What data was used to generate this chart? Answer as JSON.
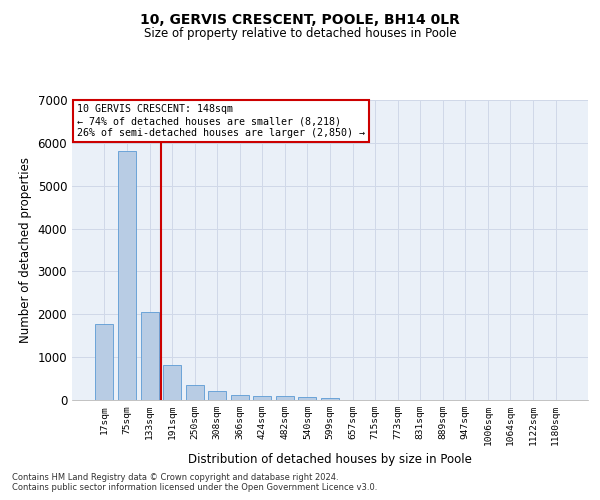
{
  "title1": "10, GERVIS CRESCENT, POOLE, BH14 0LR",
  "title2": "Size of property relative to detached houses in Poole",
  "xlabel": "Distribution of detached houses by size in Poole",
  "ylabel": "Number of detached properties",
  "property_label": "10 GERVIS CRESCENT: 148sqm",
  "annotation_line1": "← 74% of detached houses are smaller (8,218)",
  "annotation_line2": "26% of semi-detached houses are larger (2,850) →",
  "categories": [
    "17sqm",
    "75sqm",
    "133sqm",
    "191sqm",
    "250sqm",
    "308sqm",
    "366sqm",
    "424sqm",
    "482sqm",
    "540sqm",
    "599sqm",
    "657sqm",
    "715sqm",
    "773sqm",
    "831sqm",
    "889sqm",
    "947sqm",
    "1006sqm",
    "1064sqm",
    "1122sqm",
    "1180sqm"
  ],
  "values": [
    1780,
    5820,
    2060,
    820,
    350,
    205,
    115,
    100,
    100,
    70,
    55,
    0,
    0,
    0,
    0,
    0,
    0,
    0,
    0,
    0,
    0
  ],
  "bar_color": "#b8cce4",
  "bar_edge_color": "#5b9bd5",
  "vline_color": "#cc0000",
  "vline_x": 2.5,
  "ylim_max": 7000,
  "yticks": [
    0,
    1000,
    2000,
    3000,
    4000,
    5000,
    6000,
    7000
  ],
  "grid_color": "#d0d8e8",
  "bg_color": "#eaf0f8",
  "annotation_box_facecolor": "#ffffff",
  "annotation_box_edgecolor": "#cc0000",
  "footer1": "Contains HM Land Registry data © Crown copyright and database right 2024.",
  "footer2": "Contains public sector information licensed under the Open Government Licence v3.0."
}
